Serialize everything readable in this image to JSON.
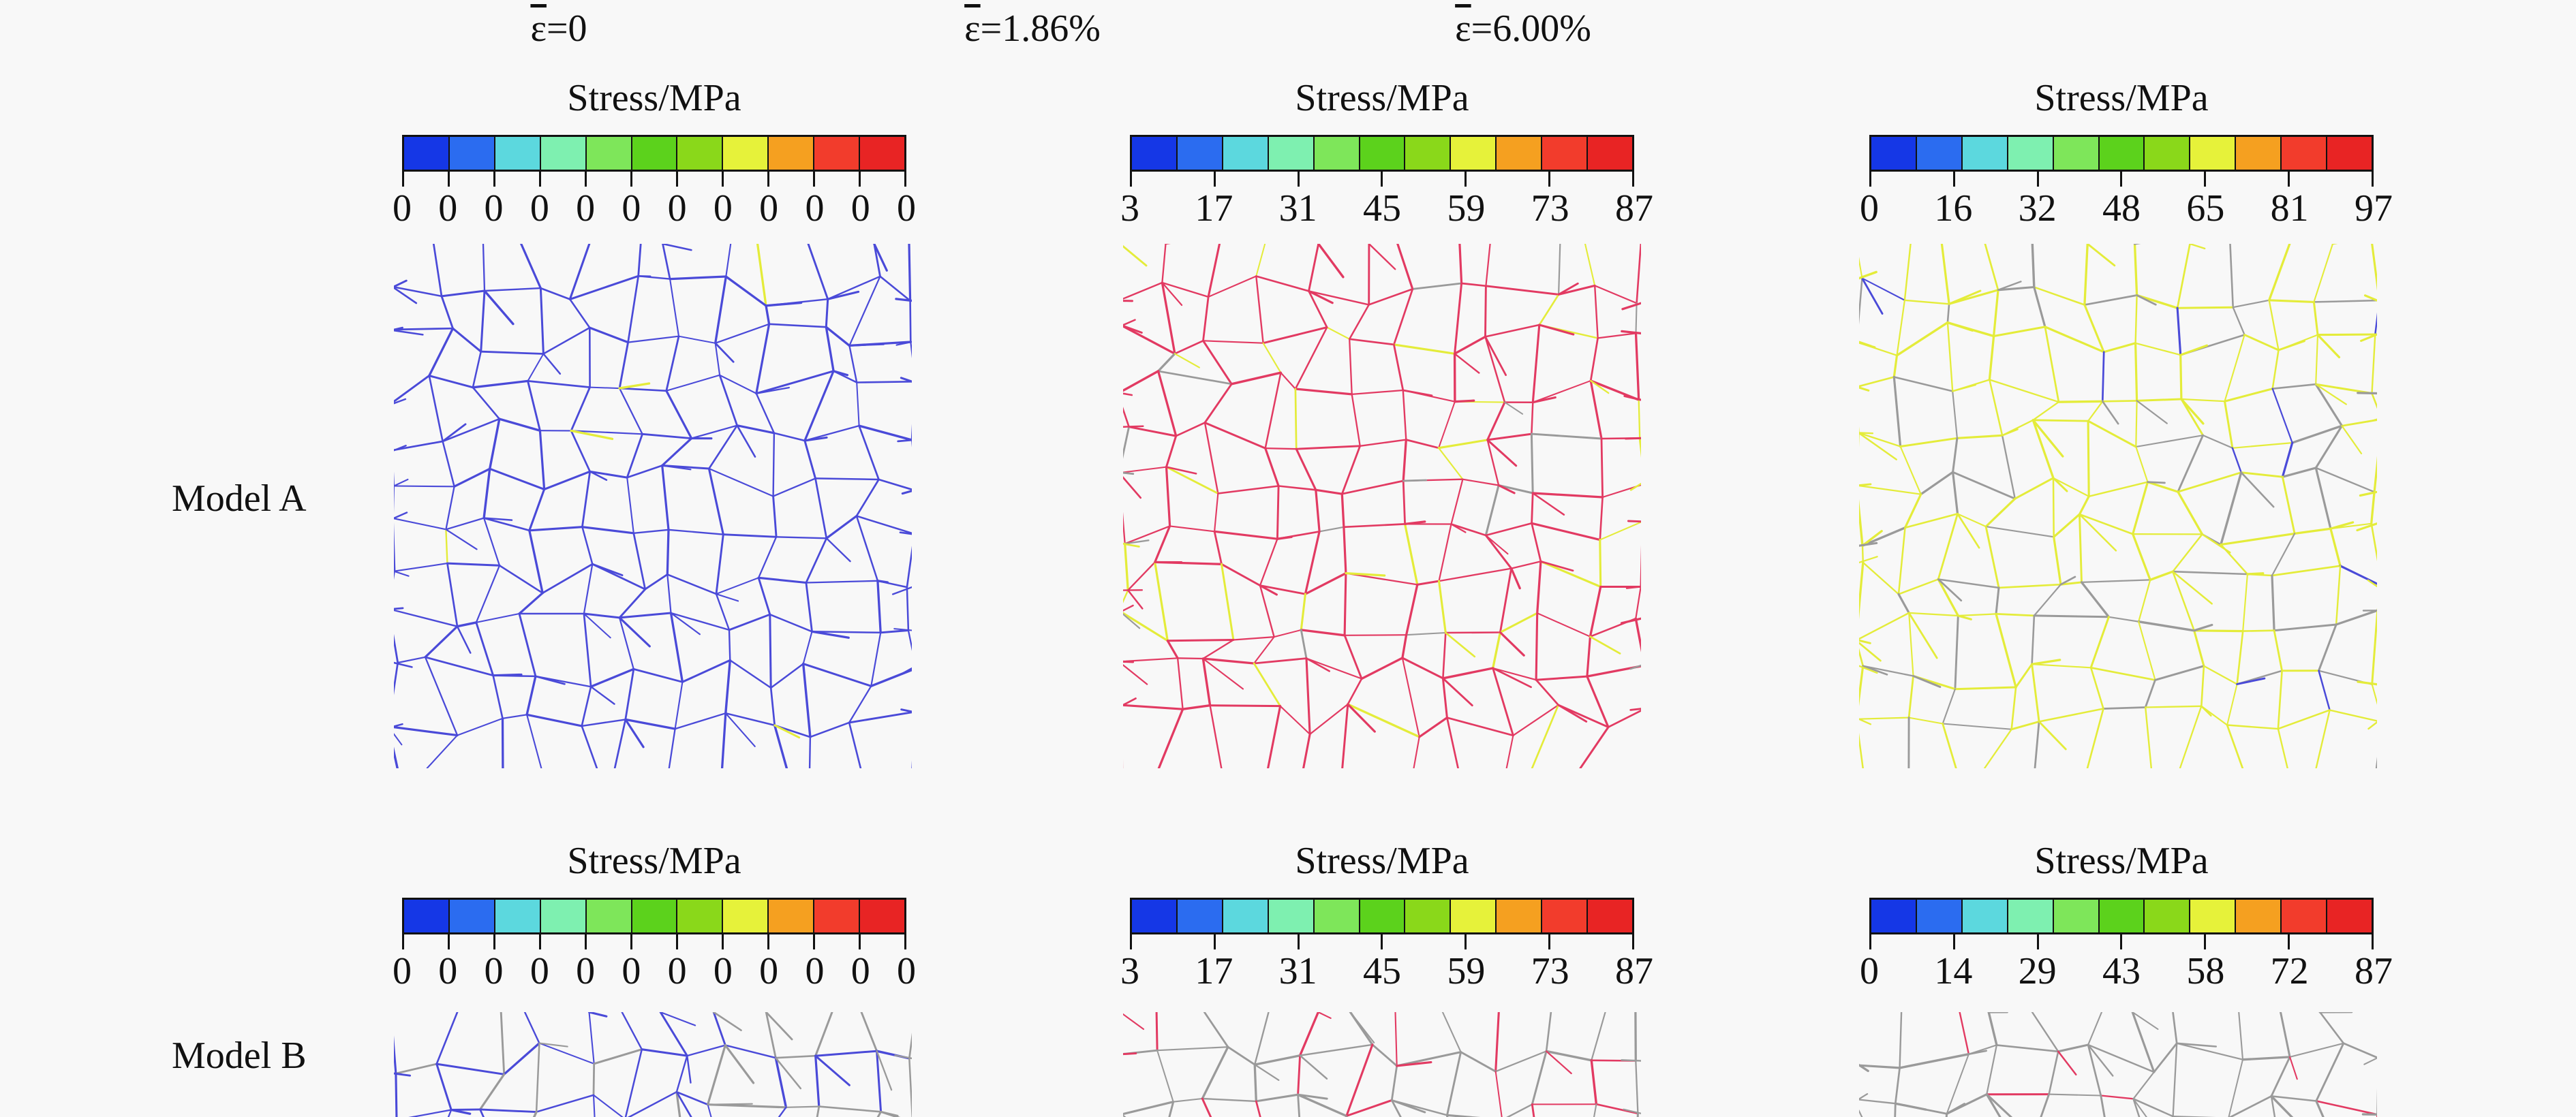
{
  "columns": [
    {
      "strain_symbol": "ε",
      "strain_value": "=0"
    },
    {
      "strain_symbol": "ε",
      "strain_value": "=1.86%"
    },
    {
      "strain_symbol": "ε",
      "strain_value": "=6.00%"
    }
  ],
  "colorbar_title": "Stress/MPa",
  "colorbar_colors": [
    "#1537e6",
    "#2b6cf0",
    "#5cd8de",
    "#7ef0b0",
    "#7ee65a",
    "#5cd21c",
    "#8ad81a",
    "#e6f23a",
    "#f5a020",
    "#f23c2c",
    "#e82424"
  ],
  "model_a": {
    "label": "Model A",
    "colorbars": [
      {
        "labels": [
          "0",
          "0",
          "0",
          "0",
          "0",
          "0",
          "0",
          "0",
          "0",
          "0",
          "0",
          "0"
        ]
      },
      {
        "labels": [
          "3",
          "17",
          "31",
          "45",
          "59",
          "73",
          "87"
        ]
      },
      {
        "labels": [
          "0",
          "16",
          "32",
          "48",
          "65",
          "81",
          "97"
        ]
      }
    ]
  },
  "model_b": {
    "label": "Model B",
    "colorbars": [
      {
        "labels": [
          "0",
          "0",
          "0",
          "0",
          "0",
          "0",
          "0",
          "0",
          "0",
          "0",
          "0",
          "0"
        ]
      },
      {
        "labels": [
          "3",
          "17",
          "31",
          "45",
          "59",
          "73",
          "87"
        ]
      },
      {
        "labels": [
          "0",
          "14",
          "29",
          "43",
          "58",
          "72",
          "87"
        ]
      }
    ]
  },
  "mesh_colors": {
    "low": "#4a4ad8",
    "mid": "#e23a62",
    "high": "#e4ec3a",
    "grey": "#9a9a9a"
  }
}
